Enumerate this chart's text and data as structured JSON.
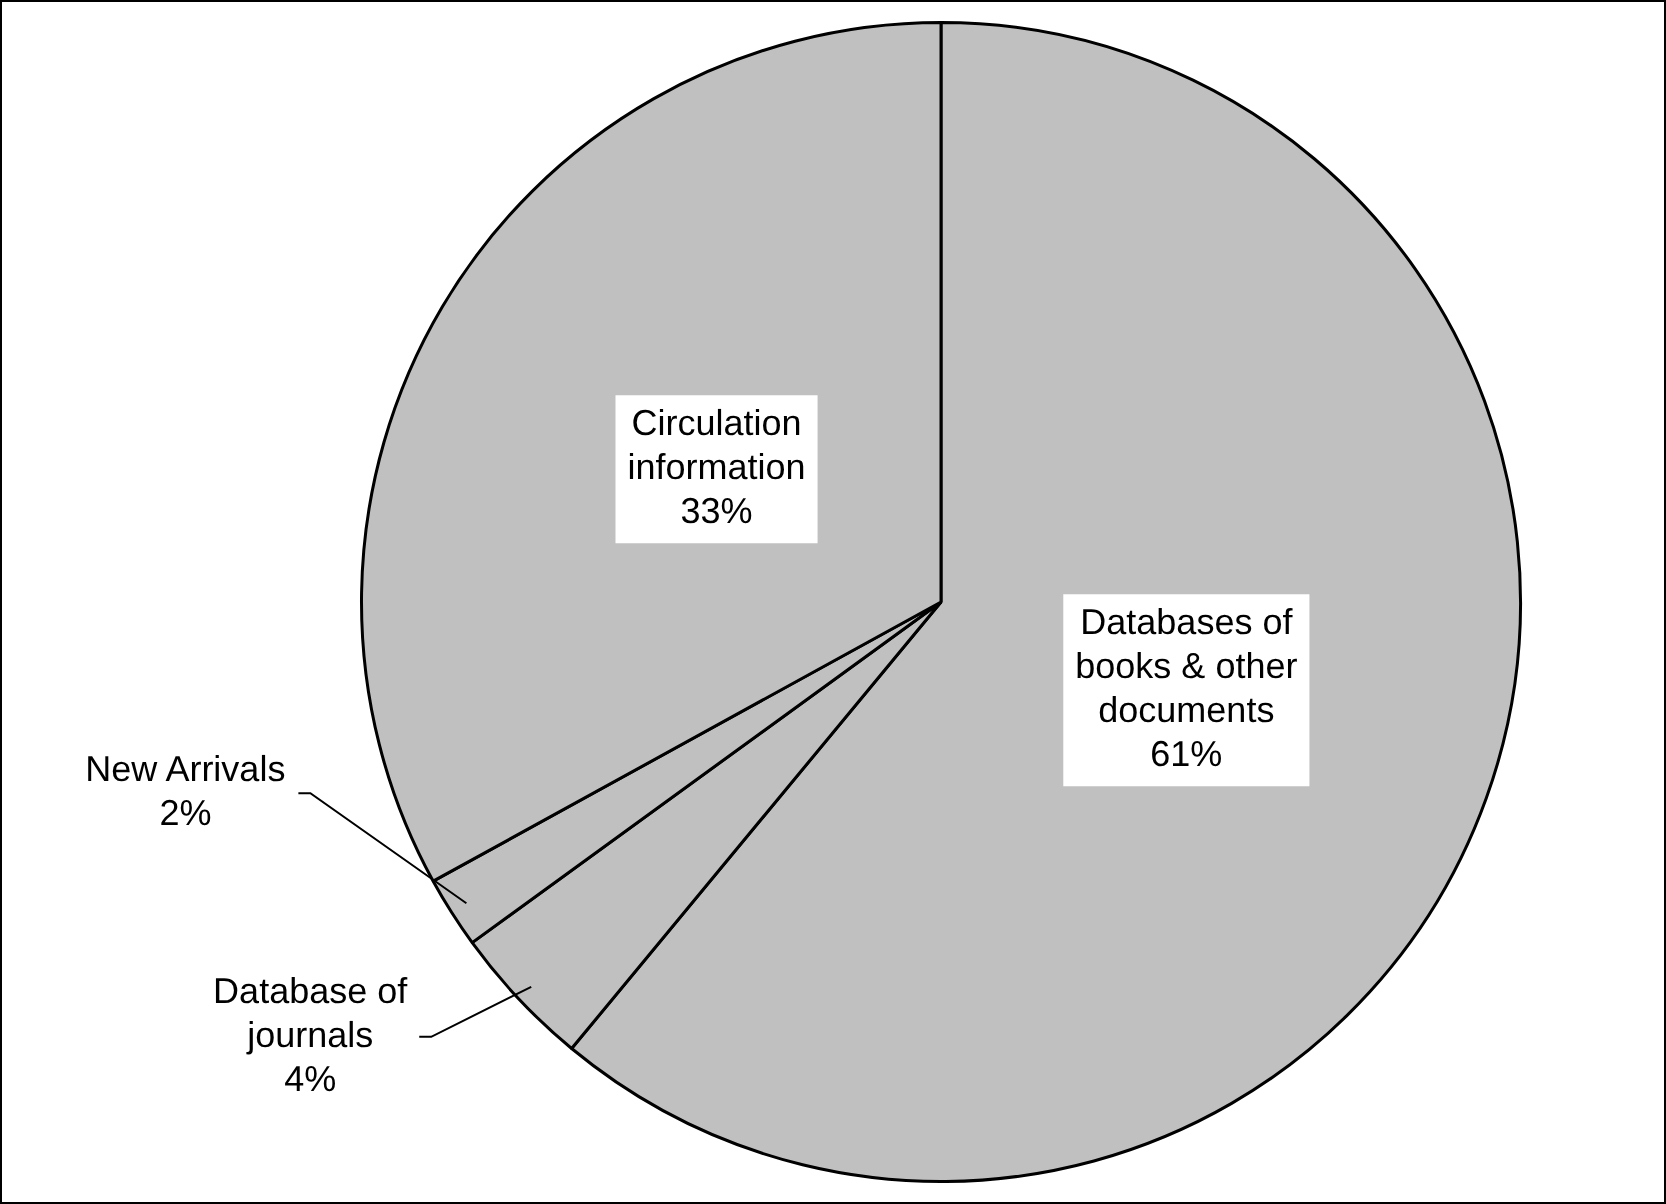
{
  "chart_data": {
    "type": "pie",
    "categories": [
      "Databases of books & other documents",
      "Database of journals",
      "New Arrivals",
      "Circulation information"
    ],
    "values": [
      61,
      4,
      2,
      33
    ],
    "value_labels": [
      "61%",
      "4%",
      "2%",
      "33%"
    ],
    "colors": [
      "#c0c0c0",
      "#c0c0c0",
      "#c0c0c0",
      "#c0c0c0"
    ],
    "legend": false
  }
}
